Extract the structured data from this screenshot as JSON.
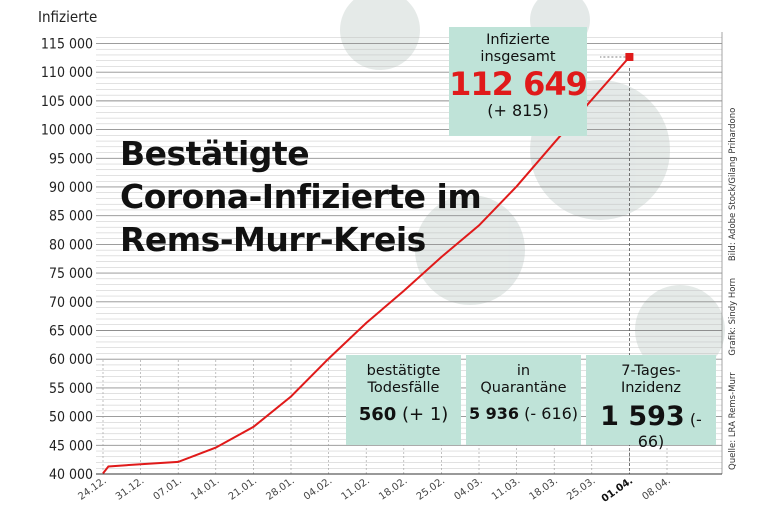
{
  "chart_data": {
    "type": "line",
    "ylabel": "Infizierte",
    "ylim": [
      40000,
      117000
    ],
    "yticks": [
      "40 000",
      "45 000",
      "50 000",
      "55 000",
      "60 000",
      "65 000",
      "70 000",
      "75 000",
      "80 000",
      "85 000",
      "90 000",
      "95 000",
      "100 000",
      "105 000",
      "110 000",
      "115 000"
    ],
    "ytick_values": [
      40000,
      45000,
      50000,
      55000,
      60000,
      65000,
      70000,
      75000,
      80000,
      85000,
      90000,
      95000,
      100000,
      105000,
      110000,
      115000
    ],
    "xticks": [
      "24.12.",
      "31.12.",
      "07.01.",
      "14.01.",
      "21.01.",
      "28.01.",
      "04.02.",
      "11.02.",
      "18.02.",
      "25.02.",
      "04.03.",
      "11.03.",
      "18.03.",
      "25.03.",
      "01.04.",
      "08.04."
    ],
    "x_highlight": "01.04.",
    "series": [
      {
        "color": "#e01a1a",
        "x": [
          "24.12.",
          "25.12.",
          "31.12.",
          "07.01.",
          "14.01.",
          "21.01.",
          "28.01.",
          "04.02.",
          "11.02.",
          "18.02.",
          "25.02.",
          "04.03.",
          "11.03.",
          "18.03.",
          "25.03.",
          "01.04."
        ],
        "values": [
          40100,
          41300,
          41700,
          42100,
          44600,
          48200,
          53500,
          60100,
          66300,
          71900,
          77800,
          83300,
          90100,
          97700,
          105200,
          112649
        ]
      }
    ],
    "grid": true
  },
  "title": [
    "Bestätigte",
    "Corona-Infizierte im",
    "Rems-Murr-Kreis"
  ],
  "boxes": {
    "total": {
      "line1": "Infizierte",
      "line2": "insgesamt",
      "value": "112 649",
      "change": "(+ 815)"
    },
    "deaths": {
      "line1": "bestätigte",
      "line2": "Todesfälle",
      "value": "560",
      "change": "(+ 1)"
    },
    "quarantine": {
      "line1": "in",
      "line2": "Quarantäne",
      "value": "5 936",
      "change": "(- 616)"
    },
    "incidence": {
      "line1": "7-Tages-",
      "line2": "Inzidenz",
      "value": "1 593",
      "change": "(- 66)"
    }
  },
  "credits": [
    "Quelle: LRA Rems-Murr",
    "Grafik: Sindy Horn",
    "Bild: Adobe Stock/Gilang Prihardono"
  ],
  "colors": {
    "accent": "#e01a1a",
    "box": "#bfe3d8",
    "grid": "#bdbdbd"
  }
}
